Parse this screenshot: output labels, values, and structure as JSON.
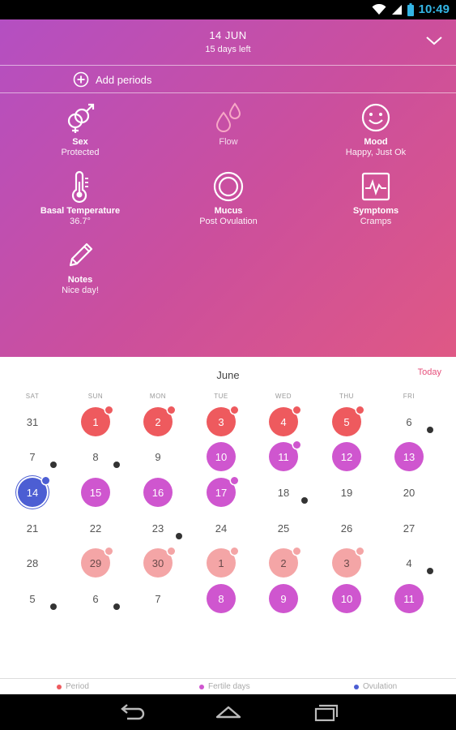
{
  "status": {
    "time": "10:49"
  },
  "header": {
    "date": "14 JUN",
    "subtitle": "15 days left"
  },
  "add_periods": {
    "label": "Add periods"
  },
  "tracking": [
    {
      "icon": "sex-icon",
      "label": "Sex",
      "value": "Protected"
    },
    {
      "icon": "flow-drops-icon",
      "label": "",
      "value": "Flow"
    },
    {
      "icon": "mood-smiley-icon",
      "label": "Mood",
      "value": "Happy, Just Ok"
    },
    {
      "icon": "thermometer-icon",
      "label": "Basal Temperature",
      "value": "36.7°"
    },
    {
      "icon": "mucus-ring-icon",
      "label": "Mucus",
      "value": "Post Ovulation"
    },
    {
      "icon": "symptoms-chart-icon",
      "label": "Symptoms",
      "value": "Cramps"
    },
    {
      "icon": "pencil-icon",
      "label": "Notes",
      "value": "Nice day!"
    }
  ],
  "calendar": {
    "month": "June",
    "today_label": "Today",
    "weekdays": [
      "SAT",
      "SUN",
      "MON",
      "TUE",
      "WED",
      "THU",
      "FRI"
    ],
    "weeks": [
      [
        {
          "d": "31"
        },
        {
          "d": "1",
          "s": "period",
          "m": "period"
        },
        {
          "d": "2",
          "s": "period",
          "m": "period"
        },
        {
          "d": "3",
          "s": "period",
          "m": "period"
        },
        {
          "d": "4",
          "s": "period",
          "m": "period"
        },
        {
          "d": "5",
          "s": "period",
          "m": "period"
        },
        {
          "d": "6",
          "m": "black"
        }
      ],
      [
        {
          "d": "7",
          "m": "black"
        },
        {
          "d": "8",
          "m": "black"
        },
        {
          "d": "9"
        },
        {
          "d": "10",
          "s": "fertile"
        },
        {
          "d": "11",
          "s": "fertile",
          "m": "fertile"
        },
        {
          "d": "12",
          "s": "fertile"
        },
        {
          "d": "13",
          "s": "fertile"
        }
      ],
      [
        {
          "d": "14",
          "s": "ovul",
          "m": "ovul"
        },
        {
          "d": "15",
          "s": "fertile"
        },
        {
          "d": "16",
          "s": "fertile"
        },
        {
          "d": "17",
          "s": "fertile",
          "m": "fertile"
        },
        {
          "d": "18",
          "m": "black"
        },
        {
          "d": "19"
        },
        {
          "d": "20"
        }
      ],
      [
        {
          "d": "21"
        },
        {
          "d": "22"
        },
        {
          "d": "23",
          "m": "black"
        },
        {
          "d": "24"
        },
        {
          "d": "25"
        },
        {
          "d": "26"
        },
        {
          "d": "27"
        }
      ],
      [
        {
          "d": "28"
        },
        {
          "d": "29",
          "s": "pred",
          "m": "pred"
        },
        {
          "d": "30",
          "s": "pred",
          "m": "pred"
        },
        {
          "d": "1",
          "s": "pred",
          "m": "pred"
        },
        {
          "d": "2",
          "s": "pred",
          "m": "pred"
        },
        {
          "d": "3",
          "s": "pred",
          "m": "pred"
        },
        {
          "d": "4",
          "m": "black"
        }
      ],
      [
        {
          "d": "5",
          "m": "black"
        },
        {
          "d": "6",
          "m": "black"
        },
        {
          "d": "7"
        },
        {
          "d": "8",
          "s": "fertile"
        },
        {
          "d": "9",
          "s": "fertile"
        },
        {
          "d": "10",
          "s": "fertile"
        },
        {
          "d": "11",
          "s": "fertile"
        }
      ]
    ]
  },
  "legend": [
    {
      "label": "Period",
      "color": "#ee5a5e"
    },
    {
      "label": "Fertile days",
      "color": "#cf56cf"
    },
    {
      "label": "Ovulation",
      "color": "#4c5ed3"
    }
  ],
  "colors": {
    "period": "#ee5a5e",
    "fertile": "#cf56cf",
    "ovulation": "#4c5ed3",
    "predicted": "#f4a5a6",
    "accent": "#e64f7b"
  }
}
